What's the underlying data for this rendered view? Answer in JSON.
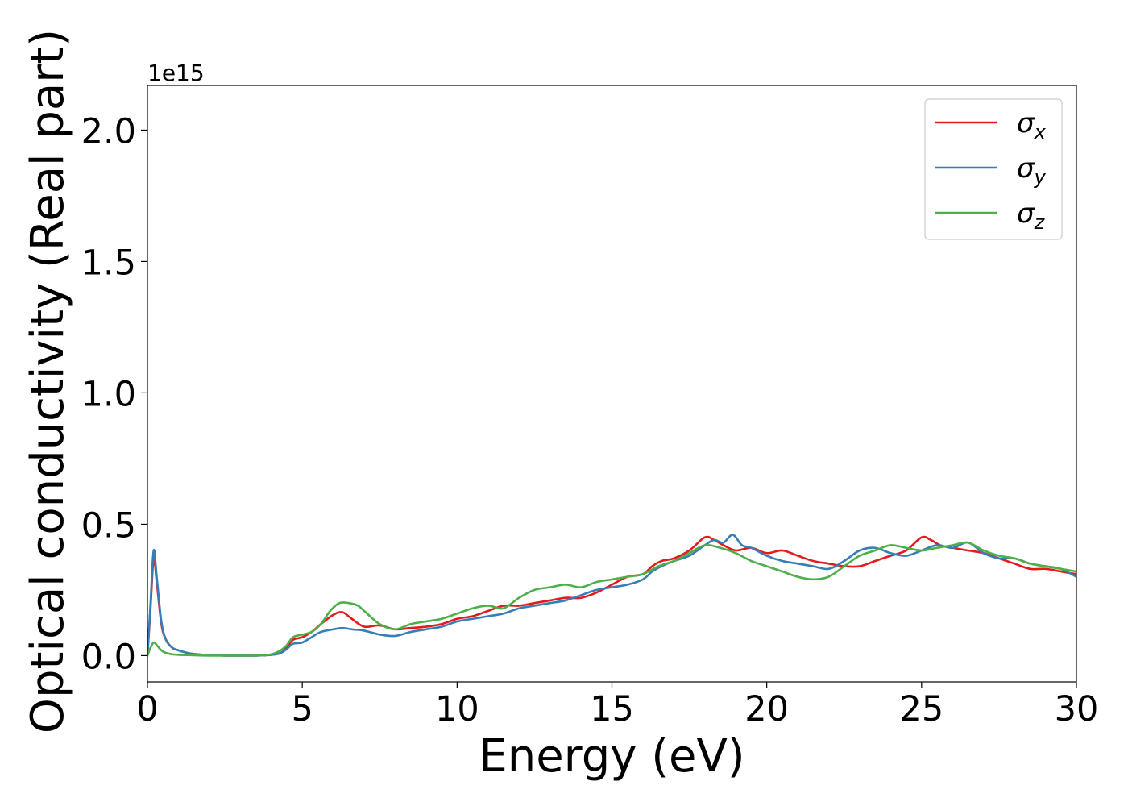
{
  "chart_data": {
    "type": "line",
    "xlabel": "Energy (eV)",
    "ylabel": "Optical conductivity (Real part)",
    "y_offset_text": "1e15",
    "y_scale_factor": 1000000000000000.0,
    "xlim": [
      0,
      30
    ],
    "ylim": [
      -0.1,
      2.17
    ],
    "x_ticks": [
      0,
      5,
      10,
      15,
      20,
      25,
      30
    ],
    "x_tick_labels": [
      "0",
      "5",
      "10",
      "15",
      "20",
      "25",
      "30"
    ],
    "y_ticks": [
      0.0,
      0.5,
      1.0,
      1.5,
      2.0
    ],
    "y_tick_labels": [
      "0.0",
      "0.5",
      "1.0",
      "1.5",
      "2.0"
    ],
    "grid": false,
    "legend_position": "top-right",
    "series": [
      {
        "name": "σx",
        "base": "σ",
        "sub": "x",
        "color": "#e41a1c",
        "x": [
          0,
          0.1,
          0.2,
          0.3,
          0.45,
          0.6,
          0.8,
          1.0,
          1.3,
          1.6,
          2.0,
          2.5,
          3.0,
          3.5,
          4.0,
          4.3,
          4.5,
          4.7,
          5.0,
          5.3,
          5.6,
          6.0,
          6.3,
          6.6,
          7.0,
          7.5,
          8.0,
          8.5,
          9.0,
          9.5,
          10.0,
          10.5,
          11.0,
          11.5,
          12.0,
          12.5,
          13.0,
          13.5,
          14.0,
          14.5,
          15.0,
          15.5,
          16.0,
          16.3,
          16.6,
          17.0,
          17.5,
          18.0,
          18.3,
          18.6,
          19.0,
          19.5,
          20.0,
          20.5,
          21.0,
          21.5,
          22.0,
          22.5,
          23.0,
          23.5,
          24.0,
          24.5,
          25.0,
          25.3,
          25.6,
          26.0,
          26.5,
          27.0,
          27.5,
          28.0,
          28.5,
          29.0,
          29.5,
          30.0
        ],
        "y": [
          0.0,
          0.18,
          0.37,
          0.28,
          0.12,
          0.06,
          0.03,
          0.02,
          0.01,
          0.005,
          0.002,
          0.0,
          0.0,
          0.0,
          0.003,
          0.01,
          0.03,
          0.06,
          0.07,
          0.09,
          0.12,
          0.155,
          0.165,
          0.14,
          0.11,
          0.115,
          0.1,
          0.105,
          0.11,
          0.12,
          0.14,
          0.15,
          0.17,
          0.19,
          0.19,
          0.2,
          0.21,
          0.22,
          0.22,
          0.24,
          0.27,
          0.3,
          0.31,
          0.34,
          0.36,
          0.37,
          0.4,
          0.45,
          0.44,
          0.42,
          0.4,
          0.41,
          0.39,
          0.4,
          0.38,
          0.36,
          0.35,
          0.34,
          0.34,
          0.36,
          0.38,
          0.4,
          0.45,
          0.44,
          0.42,
          0.41,
          0.4,
          0.39,
          0.37,
          0.35,
          0.33,
          0.33,
          0.32,
          0.31
        ]
      },
      {
        "name": "σy",
        "base": "σ",
        "sub": "y",
        "color": "#377eb8",
        "x": [
          0,
          0.1,
          0.2,
          0.3,
          0.45,
          0.6,
          0.8,
          1.0,
          1.3,
          1.6,
          2.0,
          2.5,
          3.0,
          3.5,
          4.0,
          4.3,
          4.5,
          4.7,
          5.0,
          5.3,
          5.6,
          6.0,
          6.3,
          6.6,
          7.0,
          7.5,
          8.0,
          8.5,
          9.0,
          9.5,
          10.0,
          10.5,
          11.0,
          11.5,
          12.0,
          12.5,
          13.0,
          13.5,
          14.0,
          14.5,
          15.0,
          15.5,
          16.0,
          16.3,
          16.6,
          17.0,
          17.5,
          18.0,
          18.3,
          18.6,
          18.9,
          19.2,
          19.5,
          20.0,
          20.5,
          21.0,
          21.5,
          22.0,
          22.5,
          23.0,
          23.5,
          24.0,
          24.5,
          25.0,
          25.5,
          26.0,
          26.5,
          27.0,
          27.5,
          28.0,
          28.5,
          29.0,
          29.5,
          30.0
        ],
        "y": [
          0.0,
          0.2,
          0.4,
          0.3,
          0.13,
          0.06,
          0.03,
          0.02,
          0.01,
          0.005,
          0.002,
          0.0,
          0.0,
          0.0,
          0.003,
          0.01,
          0.025,
          0.045,
          0.05,
          0.07,
          0.09,
          0.1,
          0.105,
          0.1,
          0.095,
          0.08,
          0.075,
          0.09,
          0.1,
          0.11,
          0.13,
          0.14,
          0.15,
          0.16,
          0.18,
          0.19,
          0.2,
          0.21,
          0.23,
          0.25,
          0.26,
          0.27,
          0.29,
          0.32,
          0.34,
          0.36,
          0.38,
          0.42,
          0.44,
          0.43,
          0.46,
          0.42,
          0.41,
          0.38,
          0.36,
          0.35,
          0.34,
          0.33,
          0.36,
          0.4,
          0.41,
          0.39,
          0.38,
          0.4,
          0.42,
          0.41,
          0.43,
          0.39,
          0.37,
          0.37,
          0.35,
          0.34,
          0.33,
          0.3
        ]
      },
      {
        "name": "σz",
        "base": "σ",
        "sub": "z",
        "color": "#4daf4a",
        "x": [
          0,
          0.1,
          0.2,
          0.3,
          0.45,
          0.6,
          0.8,
          1.0,
          1.3,
          1.6,
          2.0,
          2.5,
          3.0,
          3.5,
          4.0,
          4.3,
          4.5,
          4.7,
          5.0,
          5.3,
          5.6,
          5.9,
          6.2,
          6.5,
          6.8,
          7.0,
          7.5,
          8.0,
          8.5,
          9.0,
          9.5,
          10.0,
          10.5,
          11.0,
          11.5,
          12.0,
          12.5,
          13.0,
          13.5,
          14.0,
          14.5,
          15.0,
          15.5,
          16.0,
          16.5,
          17.0,
          17.5,
          18.0,
          18.5,
          19.0,
          19.5,
          20.0,
          20.5,
          21.0,
          21.5,
          22.0,
          22.5,
          23.0,
          23.5,
          24.0,
          24.5,
          25.0,
          25.5,
          26.0,
          26.5,
          27.0,
          27.5,
          28.0,
          28.5,
          29.0,
          29.5,
          30.0
        ],
        "y": [
          0.0,
          0.03,
          0.05,
          0.04,
          0.02,
          0.01,
          0.005,
          0.003,
          0.002,
          0.001,
          0.0,
          0.0,
          0.0,
          0.0,
          0.005,
          0.02,
          0.04,
          0.07,
          0.08,
          0.09,
          0.12,
          0.17,
          0.2,
          0.2,
          0.19,
          0.17,
          0.12,
          0.1,
          0.12,
          0.13,
          0.14,
          0.16,
          0.18,
          0.19,
          0.18,
          0.22,
          0.25,
          0.26,
          0.27,
          0.26,
          0.28,
          0.29,
          0.3,
          0.31,
          0.34,
          0.36,
          0.39,
          0.42,
          0.41,
          0.39,
          0.36,
          0.34,
          0.32,
          0.3,
          0.29,
          0.3,
          0.34,
          0.38,
          0.4,
          0.42,
          0.41,
          0.4,
          0.41,
          0.42,
          0.43,
          0.4,
          0.38,
          0.37,
          0.35,
          0.34,
          0.33,
          0.32
        ]
      }
    ]
  }
}
